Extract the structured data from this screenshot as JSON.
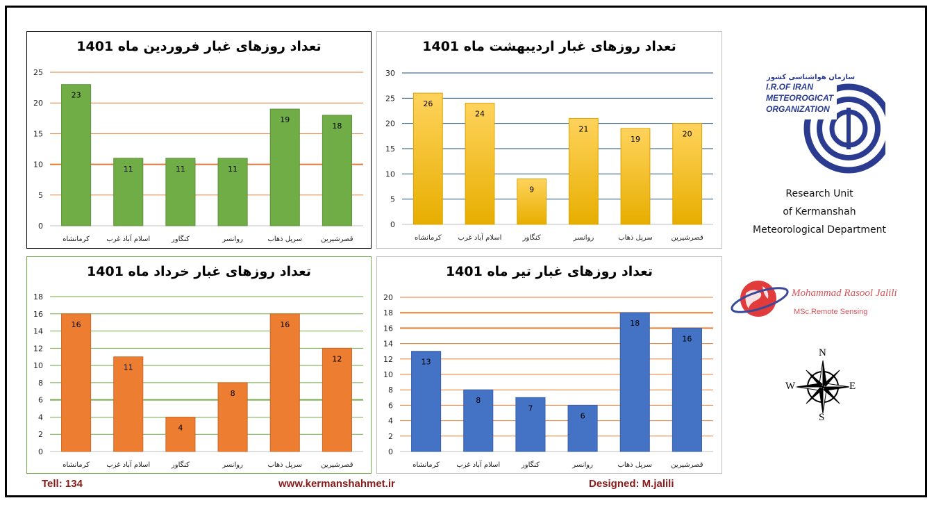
{
  "chart_data": [
    {
      "type": "bar",
      "title": "تعداد روزهای غبار فروردین ماه 1401",
      "categories": [
        "کرمانشاه",
        "اسلام آباد غرب",
        "کنگاور",
        "روانسر",
        "سرپل ذهاب",
        "قصرشیرین"
      ],
      "values": [
        23,
        11,
        11,
        11,
        19,
        18
      ],
      "ylim": [
        0,
        25
      ],
      "yticks": [
        0,
        5,
        10,
        15,
        20,
        25
      ],
      "bar_color": "#70ad47",
      "grid": true,
      "xlabel": "",
      "ylabel": ""
    },
    {
      "type": "bar",
      "title": "تعداد روزهای غبار اردیبهشت ماه 1401",
      "categories": [
        "کرمانشاه",
        "اسلام آباد غرب",
        "کنگاور",
        "روانسر",
        "سرپل ذهاب",
        "قصرشیرین"
      ],
      "values": [
        26,
        24,
        9,
        21,
        19,
        20
      ],
      "ylim": [
        0,
        30
      ],
      "yticks": [
        0,
        5,
        10,
        15,
        20,
        25,
        30
      ],
      "bar_color": "#ffc000",
      "grid": true,
      "xlabel": "",
      "ylabel": ""
    },
    {
      "type": "bar",
      "title": "تعداد روزهای غبار خرداد ماه 1401",
      "categories": [
        "کرمانشاه",
        "اسلام آباد غرب",
        "کنگاور",
        "روانسر",
        "سرپل ذهاب",
        "قصرشیرین"
      ],
      "values": [
        16,
        11,
        4,
        8,
        16,
        12
      ],
      "ylim": [
        0,
        18
      ],
      "yticks": [
        0,
        2,
        4,
        6,
        8,
        10,
        12,
        14,
        16,
        18
      ],
      "bar_color": "#ed7d31",
      "grid": true,
      "xlabel": "",
      "ylabel": ""
    },
    {
      "type": "bar",
      "title": "تعداد روزهای غبار تیر ماه 1401",
      "categories": [
        "کرمانشاه",
        "اسلام آباد غرب",
        "کنگاور",
        "روانسر",
        "سرپل ذهاب",
        "قصرشیرین"
      ],
      "values": [
        13,
        8,
        7,
        6,
        18,
        16
      ],
      "ylim": [
        0,
        20
      ],
      "yticks": [
        0,
        2,
        4,
        6,
        8,
        10,
        12,
        14,
        16,
        18,
        20
      ],
      "bar_color": "#4472c4",
      "grid": true,
      "xlabel": "",
      "ylabel": ""
    }
  ],
  "organization": {
    "name_fa": "سازمان هواشناسی کشور",
    "name_en_lines": [
      "I.R.OF IRAN",
      "METEOROGICAT",
      "ORGANIZATION"
    ],
    "logo_color": "#2b3b8f"
  },
  "research_unit": [
    "Research Unit",
    "of Kermanshah",
    "Meteorological Department"
  ],
  "signature": {
    "name": "Mohammad Rasool Jalili",
    "subtitle": "MSc.Remote Sensing",
    "color": "#d6535a"
  },
  "compass": {
    "n": "N",
    "s": "S",
    "e": "E",
    "w": "W"
  },
  "footer": {
    "tel": "Tell: 134",
    "website": "www.kermanshahmet.ir",
    "designer": "Designed: M.jalili",
    "color": "#8b1a1a"
  }
}
